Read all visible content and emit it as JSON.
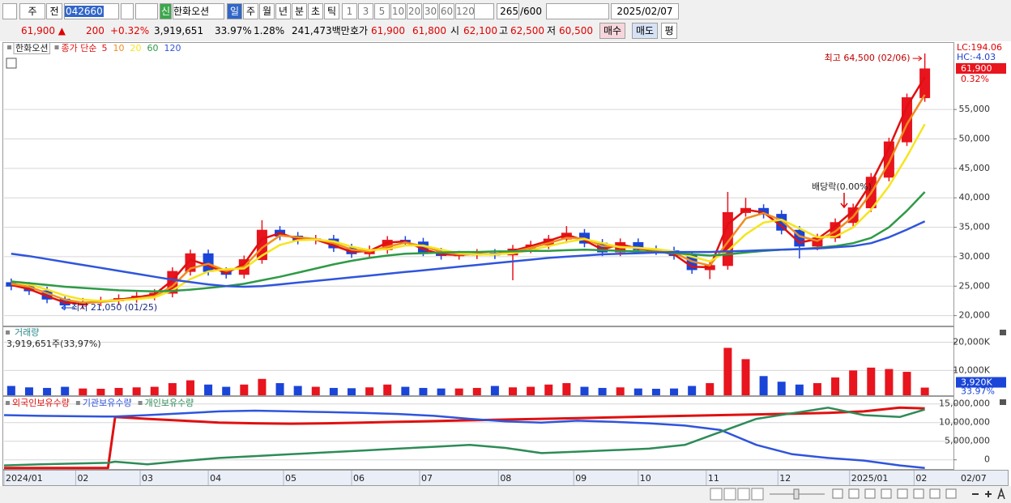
{
  "toolbar": {
    "market": "주",
    "mode": "전",
    "code": "042660",
    "badge": "신",
    "name": "한화오션",
    "periods": [
      "일",
      "주",
      "월",
      "년",
      "분",
      "초",
      "틱"
    ],
    "intervals": [
      "1",
      "3",
      "5",
      "10",
      "20",
      "30",
      "60",
      "120"
    ],
    "count": "265",
    "max": "/600",
    "date": "2025/02/07"
  },
  "quote": {
    "price": "61,900 ▲",
    "change": "200",
    "change_pct": "+0.32%",
    "volume": "3,919,651",
    "volume_ratio": "33.97%",
    "turnover": "1.28%",
    "amount": "241,473백만",
    "ask_label": "호가",
    "ask": "61,900",
    "bid": "61,800",
    "open_label": "시",
    "open": "62,100",
    "high_label": "고",
    "high": "62,500",
    "low_label": "저",
    "low": "60,500",
    "buy": "매수",
    "sell": "매도",
    "avg": "평"
  },
  "chart_data": [
    {
      "type": "candlestick",
      "name": "한화오션",
      "ma_label": "종가 단순",
      "up_color": "#e8141e",
      "down_color": "#1a45d8",
      "x": [
        2,
        7,
        12,
        17,
        22,
        27,
        32,
        37,
        42,
        47,
        52,
        57,
        62,
        67,
        72,
        77,
        82,
        87,
        92,
        97,
        102,
        107,
        112,
        117,
        122,
        127,
        132,
        137,
        142,
        147,
        152,
        157,
        162,
        167,
        172,
        177,
        182,
        187,
        192,
        197,
        202,
        207,
        212,
        217,
        222,
        227,
        232,
        237,
        242,
        247,
        252,
        257
      ],
      "open": [
        25600,
        25000,
        24200,
        22800,
        21800,
        22300,
        22500,
        22900,
        23300,
        23800,
        27500,
        30500,
        27500,
        27000,
        29500,
        34500,
        33500,
        32800,
        33000,
        31500,
        30500,
        31200,
        32800,
        32500,
        30800,
        30200,
        30300,
        30600,
        30300,
        31300,
        32000,
        33000,
        34000,
        32300,
        30800,
        32400,
        31200,
        31000,
        30200,
        27800,
        28500,
        37500,
        38200,
        37200,
        34500,
        31800,
        33200,
        35800,
        38300,
        43500,
        49500,
        57000
      ],
      "high": [
        26300,
        25700,
        24900,
        23500,
        23000,
        23200,
        23600,
        24000,
        24500,
        28200,
        31200,
        31200,
        28200,
        30200,
        36200,
        35200,
        34200,
        33700,
        33700,
        32200,
        31900,
        33500,
        33500,
        33200,
        31500,
        31000,
        31300,
        31300,
        32000,
        32700,
        33700,
        35200,
        34700,
        33000,
        33100,
        33100,
        31900,
        31700,
        30900,
        29200,
        41000,
        40000,
        38900,
        37900,
        35200,
        33900,
        36500,
        39000,
        44200,
        50200,
        57700,
        64500
      ],
      "low": [
        24300,
        23500,
        22100,
        21050,
        21100,
        21600,
        21800,
        22200,
        22600,
        23100,
        26800,
        26800,
        26300,
        26300,
        28800,
        32800,
        32100,
        32100,
        30800,
        29800,
        29800,
        30500,
        31800,
        30100,
        29500,
        29500,
        29600,
        29600,
        26000,
        30600,
        31300,
        32300,
        31600,
        30100,
        30100,
        30500,
        30300,
        29500,
        27100,
        26200,
        27800,
        36800,
        36500,
        33800,
        29700,
        31100,
        32500,
        35100,
        37600,
        42800,
        48800,
        56300
      ],
      "close": [
        25000,
        24200,
        22800,
        21800,
        22300,
        22500,
        22900,
        23300,
        23800,
        27500,
        30500,
        27500,
        27000,
        29500,
        34500,
        33500,
        32800,
        33000,
        31500,
        30500,
        31200,
        32800,
        32500,
        30800,
        30200,
        30300,
        30600,
        30300,
        31300,
        32000,
        33000,
        34000,
        32300,
        30800,
        32400,
        31200,
        31000,
        30200,
        27800,
        28500,
        37500,
        38200,
        37200,
        34500,
        31800,
        33200,
        35800,
        38300,
        43500,
        49500,
        57000,
        61900
      ],
      "series": [
        {
          "name": "5",
          "color": "#e01010",
          "values": [
            25200,
            24500,
            23300,
            22200,
            22100,
            22400,
            22700,
            23100,
            23600,
            26000,
            29500,
            28500,
            27200,
            28800,
            33000,
            34000,
            33000,
            32900,
            31900,
            30800,
            31000,
            32400,
            32600,
            31300,
            30400,
            30300,
            30500,
            30400,
            31000,
            31800,
            32700,
            33700,
            32800,
            31200,
            32100,
            31400,
            31000,
            30400,
            28300,
            28200,
            35500,
            38000,
            37500,
            35200,
            32400,
            33000,
            35200,
            37800,
            42500,
            48500,
            55500,
            60500
          ]
        },
        {
          "name": "10",
          "color": "#f08c1e",
          "values": [
            25400,
            24900,
            23800,
            22700,
            22200,
            22300,
            22600,
            22900,
            23300,
            25000,
            28000,
            28800,
            27600,
            28300,
            31500,
            33600,
            33300,
            33000,
            32300,
            31200,
            30900,
            31700,
            32400,
            31800,
            30800,
            30400,
            30400,
            30400,
            30800,
            31500,
            32300,
            33200,
            33100,
            31800,
            31700,
            31500,
            31100,
            30700,
            29200,
            28500,
            32500,
            36500,
            37400,
            36200,
            33500,
            32700,
            34300,
            36800,
            40800,
            46000,
            52500,
            57500
          ]
        },
        {
          "name": "20",
          "color": "#f5e51e",
          "values": [
            25800,
            25300,
            24400,
            23400,
            22700,
            22500,
            22600,
            22800,
            23100,
            24300,
            26200,
            27500,
            27900,
            28000,
            30200,
            32000,
            32800,
            32900,
            32600,
            31700,
            31100,
            31300,
            31900,
            31900,
            31200,
            30600,
            30400,
            30400,
            30600,
            31100,
            31800,
            32500,
            33000,
            32300,
            31600,
            31500,
            31300,
            30900,
            30000,
            29200,
            31000,
            33800,
            35800,
            36300,
            34800,
            33300,
            33400,
            35000,
            38000,
            42000,
            47000,
            52500
          ]
        },
        {
          "name": "60",
          "color": "#2e9a46",
          "values": [
            25800,
            25500,
            25200,
            24900,
            24700,
            24500,
            24300,
            24200,
            24100,
            24200,
            24400,
            24700,
            25000,
            25400,
            26000,
            26600,
            27300,
            28000,
            28700,
            29300,
            29800,
            30200,
            30500,
            30600,
            30700,
            30800,
            30800,
            30900,
            30900,
            31000,
            31000,
            31100,
            31200,
            31100,
            31000,
            30900,
            30800,
            30600,
            30400,
            30200,
            30400,
            30700,
            31000,
            31200,
            31300,
            31500,
            31800,
            32300,
            33200,
            35000,
            37800,
            41000
          ]
        },
        {
          "name": "120",
          "color": "#2f55dc",
          "values": [
            30500,
            30100,
            29600,
            29100,
            28600,
            28100,
            27600,
            27100,
            26600,
            26100,
            25700,
            25300,
            25000,
            24900,
            25000,
            25300,
            25600,
            25900,
            26200,
            26500,
            26800,
            27100,
            27400,
            27700,
            28000,
            28300,
            28600,
            28900,
            29200,
            29500,
            29800,
            30000,
            30200,
            30400,
            30500,
            30600,
            30700,
            30800,
            30800,
            30800,
            30900,
            31000,
            31100,
            31200,
            31300,
            31400,
            31600,
            31800,
            32300,
            33300,
            34600,
            36000
          ]
        }
      ],
      "xlim": [
        0,
        265
      ],
      "ylim": [
        18300,
        66300
      ],
      "yticks": [
        {
          "value": 20000,
          "label": "20,000"
        },
        {
          "value": 25000,
          "label": "25,000"
        },
        {
          "value": 30000,
          "label": "30,000"
        },
        {
          "value": 35000,
          "label": "35,000"
        },
        {
          "value": 40000,
          "label": "40,000"
        },
        {
          "value": 45000,
          "label": "45,000"
        },
        {
          "value": 50000,
          "label": "50,000"
        },
        {
          "value": 55000,
          "label": "55,000"
        }
      ],
      "grid": true,
      "lc": "LC:194.06",
      "hc": "HC:-4.03",
      "current": {
        "value": 61900,
        "label": "61,900"
      },
      "current_change": "0.32%",
      "high_label": "최고 64,500 (02/06)",
      "low_label": "최저 21,050 (01/25)",
      "dividend_label": "배당락(0.00%)"
    },
    {
      "type": "bar",
      "title": "거래량",
      "subtitle": "3,919,651주(33,97%)",
      "x": [
        2,
        7,
        12,
        17,
        22,
        27,
        32,
        37,
        42,
        47,
        52,
        57,
        62,
        67,
        72,
        77,
        82,
        87,
        92,
        97,
        102,
        107,
        112,
        117,
        122,
        127,
        132,
        137,
        142,
        147,
        152,
        157,
        162,
        167,
        172,
        177,
        182,
        187,
        192,
        197,
        202,
        207,
        212,
        217,
        222,
        227,
        232,
        237,
        242,
        247,
        252,
        257
      ],
      "values": [
        4500,
        4000,
        3800,
        4200,
        3600,
        3500,
        3800,
        4000,
        4200,
        5500,
        6500,
        5000,
        4200,
        5000,
        7000,
        5500,
        4500,
        4200,
        3800,
        3700,
        4000,
        5000,
        4200,
        3800,
        3600,
        3600,
        3800,
        4500,
        4000,
        4200,
        5000,
        5500,
        4200,
        3800,
        4000,
        3600,
        3500,
        3600,
        4500,
        5500,
        18000,
        14000,
        8000,
        6000,
        5000,
        5500,
        7500,
        10000,
        11000,
        10500,
        9500,
        3920
      ],
      "xlim": [
        0,
        265
      ],
      "ylim": [
        1200,
        25300
      ],
      "yticks": [
        {
          "value": 10000,
          "label": "10,000K"
        },
        {
          "value": 20000,
          "label": "20,000K"
        }
      ],
      "current": {
        "value": 3920,
        "label": "3,920K"
      },
      "current_pct": "33.97%"
    },
    {
      "type": "line",
      "x": [
        0,
        10,
        20,
        29,
        31,
        40,
        50,
        60,
        70,
        80,
        90,
        100,
        110,
        120,
        130,
        140,
        150,
        160,
        170,
        180,
        190,
        200,
        210,
        220,
        230,
        240,
        250,
        257
      ],
      "series": [
        {
          "name": "외국인보유수량",
          "color": "#e01010",
          "values": [
            -2200000,
            -2200000,
            -2200000,
            -2200000,
            11500000,
            11000000,
            10500000,
            10000000,
            9800000,
            9700000,
            9800000,
            10000000,
            10200000,
            10400000,
            10600000,
            10800000,
            11000000,
            11200000,
            11400000,
            11600000,
            11800000,
            12000000,
            12200000,
            12400000,
            12600000,
            13000000,
            14000000,
            13800000
          ]
        },
        {
          "name": "기관보유수량",
          "color": "#2f55dc",
          "values": [
            12000000,
            11800000,
            11700000,
            11600000,
            11600000,
            12000000,
            12500000,
            13000000,
            13200000,
            13000000,
            12800000,
            12600000,
            12300000,
            11800000,
            11000000,
            10300000,
            10000000,
            10500000,
            10200000,
            9800000,
            9200000,
            8000000,
            4000000,
            1500000,
            500000,
            -200000,
            -1500000,
            -2200000
          ]
        },
        {
          "name": "개인보유수량",
          "color": "#2e8b57",
          "values": [
            -1500000,
            -1200000,
            -1000000,
            -800000,
            -500000,
            -1200000,
            -300000,
            500000,
            1000000,
            1500000,
            2000000,
            2500000,
            3000000,
            3500000,
            4000000,
            3200000,
            1800000,
            2200000,
            2600000,
            3000000,
            4000000,
            7500000,
            11000000,
            12500000,
            14000000,
            12000000,
            11500000,
            13500000
          ]
        }
      ],
      "xlim": [
        0,
        265
      ],
      "ylim": [
        -2670000,
        16890000
      ],
      "yticks": [
        0,
        {
          "value": 5000000,
          "label": "5,000,000"
        },
        {
          "value": 10000000,
          "label": "10,000,000"
        },
        {
          "value": 15000000,
          "label": "15,000,000"
        }
      ],
      "xticks": [
        {
          "value": 0,
          "label": "2024/01"
        },
        {
          "value": 20,
          "label": "02"
        },
        {
          "value": 38,
          "label": "03"
        },
        {
          "value": 57,
          "label": "04"
        },
        {
          "value": 78,
          "label": "05"
        },
        {
          "value": 97,
          "label": "06"
        },
        {
          "value": 116,
          "label": "07"
        },
        {
          "value": 138,
          "label": "08"
        },
        {
          "value": 159,
          "label": "09"
        },
        {
          "value": 177,
          "label": "10"
        },
        {
          "value": 196,
          "label": "11"
        },
        {
          "value": 216,
          "label": "12"
        },
        {
          "value": 236,
          "label": "2025/01"
        },
        {
          "value": 254,
          "label": "02"
        }
      ],
      "x_end_label": "02/07"
    }
  ]
}
